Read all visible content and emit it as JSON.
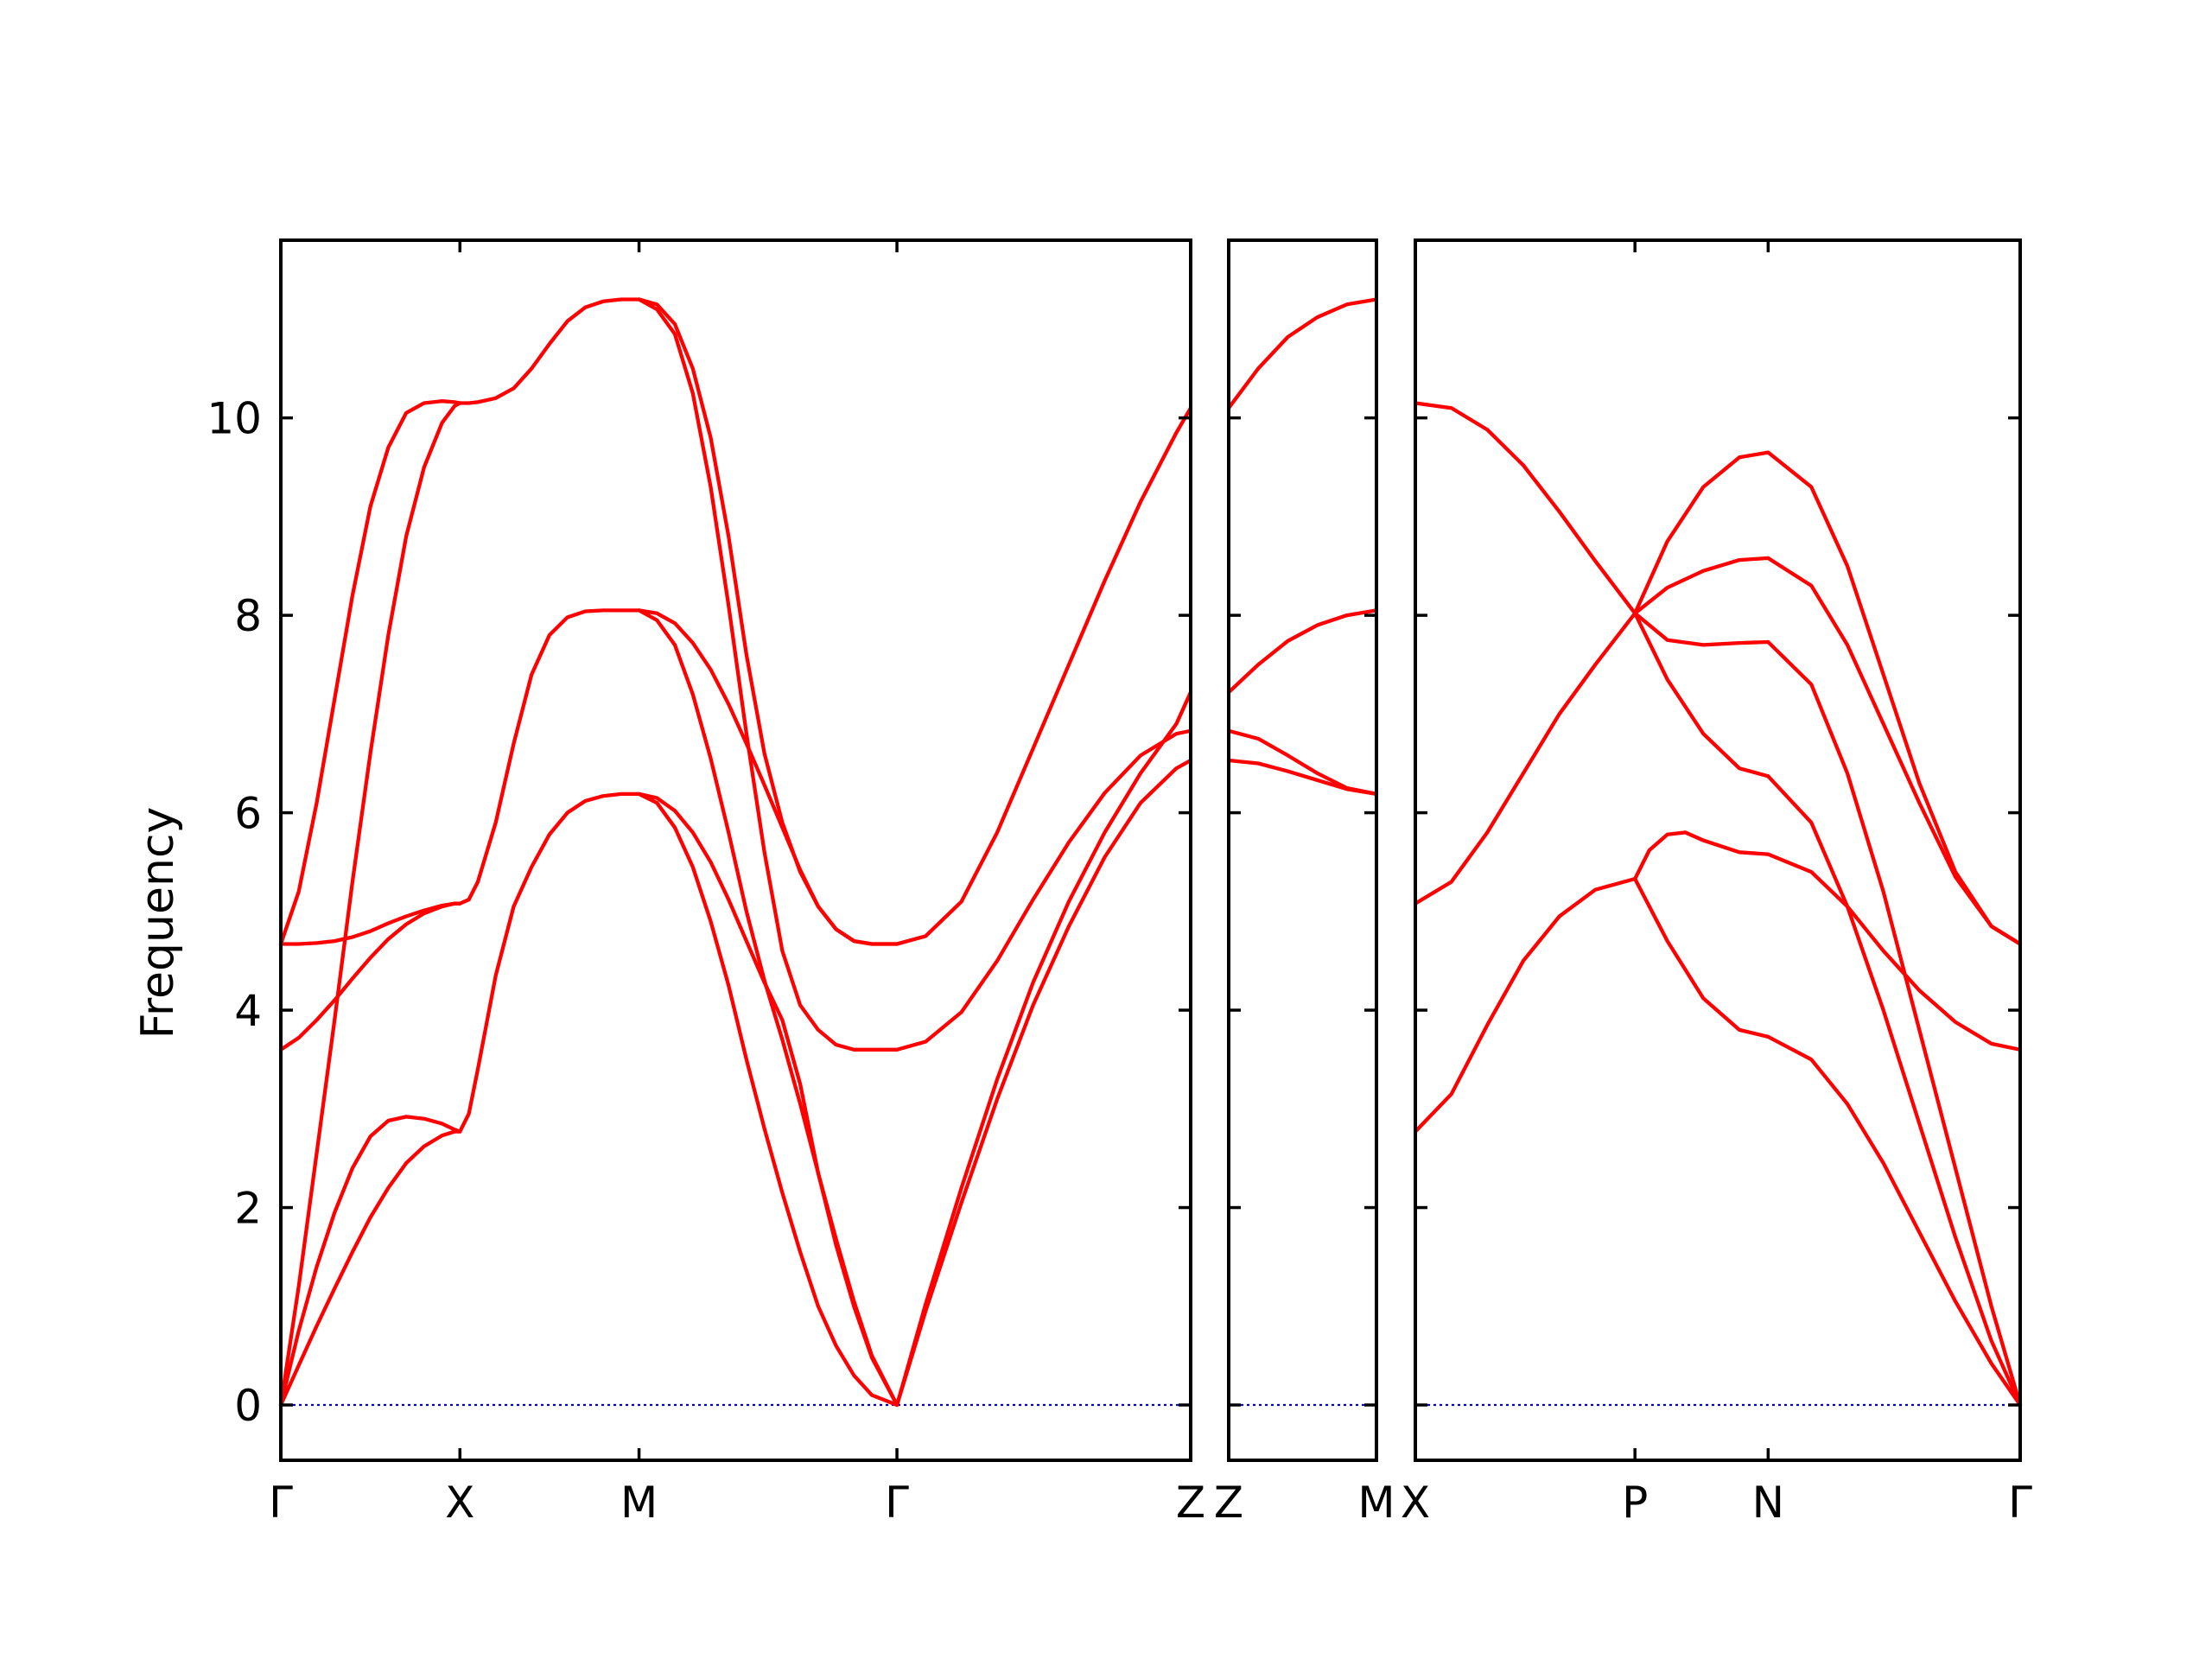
{
  "chart_data": {
    "type": "line",
    "ylabel": "Frequency",
    "ylim": [
      -0.56,
      11.8
    ],
    "yticks": [
      0,
      2,
      4,
      6,
      8,
      10
    ],
    "grid": false,
    "line_color": "#ff0000",
    "zero_line_color": "#0000cc",
    "panels": [
      {
        "xlim": [
          0,
          5.08
        ],
        "kpoints": [
          {
            "label": "Γ",
            "x": 0
          },
          {
            "label": "X",
            "x": 1
          },
          {
            "label": "M",
            "x": 2
          },
          {
            "label": "Γ",
            "x": 3.44
          },
          {
            "label": "Z",
            "x": 5.08
          }
        ],
        "series": [
          {
            "x": [
              0,
              0.1,
              0.2,
              0.3,
              0.4,
              0.5,
              0.6,
              0.7,
              0.8,
              0.9,
              0.97,
              1
            ],
            "y": [
              4.67,
              4.67,
              4.68,
              4.7,
              4.74,
              4.8,
              4.88,
              4.95,
              5.01,
              5.06,
              5.08,
              5.08
            ]
          },
          {
            "x": [
              0,
              0.1,
              0.2,
              0.3,
              0.4,
              0.5,
              0.6,
              0.7,
              0.8,
              0.9,
              0.97,
              1
            ],
            "y": [
              3.6,
              3.72,
              3.9,
              4.1,
              4.32,
              4.53,
              4.72,
              4.87,
              4.98,
              5.05,
              5.08,
              5.08
            ]
          },
          {
            "x": [
              0,
              0.1,
              0.2,
              0.3,
              0.4,
              0.5,
              0.6,
              0.7,
              0.8,
              0.9,
              0.97,
              1
            ],
            "y": [
              4.67,
              5.2,
              6.1,
              7.15,
              8.2,
              9.1,
              9.7,
              10.05,
              10.15,
              10.17,
              10.16,
              10.15
            ]
          },
          {
            "x": [
              0,
              0.1,
              0.2,
              0.3,
              0.4,
              0.5,
              0.6,
              0.7,
              0.8,
              0.9,
              0.97,
              1
            ],
            "y": [
              0,
              1.2,
              2.55,
              3.9,
              5.3,
              6.6,
              7.8,
              8.8,
              9.5,
              9.95,
              10.12,
              10.15
            ]
          },
          {
            "x": [
              0,
              0.1,
              0.2,
              0.3,
              0.4,
              0.5,
              0.6,
              0.7,
              0.8,
              0.9,
              0.97,
              1
            ],
            "y": [
              0,
              0.75,
              1.4,
              1.95,
              2.4,
              2.72,
              2.88,
              2.92,
              2.9,
              2.85,
              2.79,
              2.77
            ]
          },
          {
            "x": [
              0,
              0.1,
              0.2,
              0.3,
              0.4,
              0.5,
              0.6,
              0.7,
              0.8,
              0.9,
              0.97,
              1
            ],
            "y": [
              0,
              0.4,
              0.8,
              1.18,
              1.55,
              1.9,
              2.2,
              2.45,
              2.62,
              2.73,
              2.77,
              2.77
            ]
          },
          {
            "x": [
              1,
              1.05,
              1.1,
              1.2,
              1.3,
              1.4,
              1.5,
              1.6,
              1.7,
              1.8,
              1.9,
              2
            ],
            "y": [
              10.15,
              10.15,
              10.16,
              10.2,
              10.3,
              10.5,
              10.75,
              10.98,
              11.12,
              11.18,
              11.2,
              11.2
            ]
          },
          {
            "x": [
              1,
              1.05,
              1.1,
              1.2,
              1.3,
              1.4,
              1.5,
              1.6,
              1.7,
              1.8,
              1.9,
              2
            ],
            "y": [
              5.08,
              5.12,
              5.3,
              5.9,
              6.7,
              7.4,
              7.8,
              7.98,
              8.04,
              8.05,
              8.05,
              8.05
            ]
          },
          {
            "x": [
              1,
              1.05,
              1.1,
              1.2,
              1.3,
              1.4,
              1.5,
              1.6,
              1.7,
              1.8,
              1.9,
              2
            ],
            "y": [
              2.77,
              2.95,
              3.4,
              4.35,
              5.05,
              5.45,
              5.78,
              6,
              6.12,
              6.17,
              6.19,
              6.19
            ]
          },
          {
            "x": [
              2,
              2.1,
              2.2,
              2.3,
              2.4,
              2.5,
              2.6,
              2.7,
              2.8,
              2.9,
              3,
              3.1,
              3.2,
              3.3,
              3.44
            ],
            "y": [
              11.2,
              11.15,
              10.95,
              10.5,
              9.8,
              8.8,
              7.6,
              6.6,
              5.9,
              5.4,
              5.05,
              4.82,
              4.7,
              4.67,
              4.67
            ]
          },
          {
            "x": [
              2,
              2.1,
              2.2,
              2.3,
              2.4,
              2.5,
              2.6,
              2.7,
              2.8,
              2.9,
              3,
              3.1,
              3.2,
              3.3,
              3.44
            ],
            "y": [
              11.2,
              11.1,
              10.85,
              10.25,
              9.3,
              8.1,
              6.8,
              5.6,
              4.6,
              4.05,
              3.8,
              3.65,
              3.6,
              3.6,
              3.6
            ]
          },
          {
            "x": [
              2,
              2.1,
              2.2,
              2.3,
              2.4,
              2.5,
              2.6,
              2.7,
              2.8,
              2.9,
              3,
              3.1,
              3.2,
              3.3,
              3.44
            ],
            "y": [
              8.05,
              8.02,
              7.92,
              7.72,
              7.45,
              7.1,
              6.7,
              6.28,
              5.85,
              5.42,
              5.05,
              4.82,
              4.7,
              4.67,
              4.67
            ]
          },
          {
            "x": [
              2,
              2.1,
              2.2,
              2.3,
              2.4,
              2.5,
              2.6,
              2.7,
              2.8,
              2.9,
              3,
              3.1,
              3.2,
              3.3,
              3.44
            ],
            "y": [
              8.05,
              7.95,
              7.7,
              7.2,
              6.55,
              5.8,
              5,
              4.3,
              3.7,
              3.05,
              2.35,
              1.68,
              1.05,
              0.5,
              0
            ]
          },
          {
            "x": [
              2,
              2.1,
              2.2,
              2.3,
              2.4,
              2.5,
              2.6,
              2.7,
              2.8,
              2.9,
              3,
              3.1,
              3.2,
              3.3,
              3.44
            ],
            "y": [
              6.19,
              6.15,
              6.02,
              5.8,
              5.5,
              5.12,
              4.7,
              4.28,
              3.9,
              3.25,
              2.35,
              1.62,
              1,
              0.48,
              0
            ]
          },
          {
            "x": [
              2,
              2.1,
              2.2,
              2.3,
              2.4,
              2.5,
              2.6,
              2.7,
              2.8,
              2.9,
              3,
              3.1,
              3.2,
              3.3,
              3.44
            ],
            "y": [
              6.19,
              6.1,
              5.85,
              5.45,
              4.9,
              4.25,
              3.5,
              2.8,
              2.15,
              1.55,
              1,
              0.6,
              0.3,
              0.1,
              0
            ]
          },
          {
            "x": [
              3.44,
              3.6,
              3.8,
              4,
              4.2,
              4.4,
              4.6,
              4.8,
              5,
              5.08
            ],
            "y": [
              4.67,
              4.75,
              5.1,
              5.8,
              6.65,
              7.5,
              8.35,
              9.15,
              9.85,
              10.1
            ]
          },
          {
            "x": [
              3.44,
              3.6,
              3.8,
              4,
              4.2,
              4.4,
              4.6,
              4.8,
              5,
              5.08
            ],
            "y": [
              3.6,
              3.68,
              3.98,
              4.5,
              5.12,
              5.7,
              6.2,
              6.58,
              6.8,
              6.83
            ]
          },
          {
            "x": [
              3.44,
              3.6,
              3.8,
              4,
              4.2,
              4.4,
              4.6,
              4.8,
              5,
              5.08
            ],
            "y": [
              0,
              1.02,
              2.2,
              3.3,
              4.28,
              5.1,
              5.8,
              6.4,
              6.9,
              7.22
            ]
          },
          {
            "x": [
              3.44,
              3.6,
              3.8,
              4,
              4.2,
              4.4,
              4.6,
              4.8,
              5,
              5.08
            ],
            "y": [
              0,
              0.95,
              2.05,
              3.1,
              4.05,
              4.85,
              5.55,
              6.1,
              6.45,
              6.53
            ]
          }
        ]
      },
      {
        "xlim": [
          0,
          1
        ],
        "kpoints": [
          {
            "label": "Z",
            "x": 0
          },
          {
            "label": "M",
            "x": 1
          }
        ],
        "series": [
          {
            "x": [
              0,
              0.2,
              0.4,
              0.6,
              0.8,
              1
            ],
            "y": [
              10.1,
              10.5,
              10.82,
              11.02,
              11.15,
              11.2
            ]
          },
          {
            "x": [
              0,
              0.2,
              0.4,
              0.6,
              0.8,
              1
            ],
            "y": [
              7.22,
              7.5,
              7.74,
              7.9,
              8,
              8.05
            ]
          },
          {
            "x": [
              0,
              0.2,
              0.4,
              0.6,
              0.8,
              1
            ],
            "y": [
              6.83,
              6.75,
              6.58,
              6.4,
              6.25,
              6.19
            ]
          },
          {
            "x": [
              0,
              0.2,
              0.4,
              0.6,
              0.8,
              1
            ],
            "y": [
              6.53,
              6.5,
              6.42,
              6.33,
              6.24,
              6.19
            ]
          }
        ]
      },
      {
        "xlim": [
          0,
          3.36
        ],
        "kpoints": [
          {
            "label": "X",
            "x": 0
          },
          {
            "label": "P",
            "x": 1.22
          },
          {
            "label": "N",
            "x": 1.96
          },
          {
            "label": "Γ",
            "x": 3.36
          }
        ],
        "series": [
          {
            "x": [
              0,
              0.2,
              0.4,
              0.6,
              0.8,
              1,
              1.22
            ],
            "y": [
              10.15,
              10.1,
              9.88,
              9.52,
              9.05,
              8.55,
              8.02
            ]
          },
          {
            "x": [
              0,
              0.2,
              0.4,
              0.6,
              0.8,
              1,
              1.22
            ],
            "y": [
              5.08,
              5.3,
              5.8,
              6.4,
              7,
              7.5,
              8.02
            ]
          },
          {
            "x": [
              0,
              0.2,
              0.4,
              0.6,
              0.8,
              1,
              1.22
            ],
            "y": [
              2.77,
              3.15,
              3.85,
              4.5,
              4.95,
              5.22,
              5.33
            ]
          },
          {
            "x": [
              1.22,
              1.4,
              1.6,
              1.8,
              1.96
            ],
            "y": [
              8.02,
              8.75,
              9.3,
              9.6,
              9.65
            ]
          },
          {
            "x": [
              1.22,
              1.4,
              1.6,
              1.8,
              1.96
            ],
            "y": [
              8.02,
              8.28,
              8.45,
              8.56,
              8.58
            ]
          },
          {
            "x": [
              1.22,
              1.4,
              1.6,
              1.8,
              1.96
            ],
            "y": [
              8.02,
              7.75,
              7.7,
              7.72,
              7.73
            ]
          },
          {
            "x": [
              1.22,
              1.4,
              1.6,
              1.8,
              1.96
            ],
            "y": [
              8.02,
              7.35,
              6.8,
              6.45,
              6.37
            ]
          },
          {
            "x": [
              1.22,
              1.3,
              1.4,
              1.5,
              1.6,
              1.8,
              1.96
            ],
            "y": [
              5.33,
              5.62,
              5.78,
              5.8,
              5.72,
              5.6,
              5.58
            ]
          },
          {
            "x": [
              1.22,
              1.4,
              1.6,
              1.8,
              1.96
            ],
            "y": [
              5.33,
              4.7,
              4.12,
              3.8,
              3.73
            ]
          },
          {
            "x": [
              1.96,
              2.2,
              2.4,
              2.6,
              2.8,
              3,
              3.2,
              3.36
            ],
            "y": [
              9.65,
              9.3,
              8.5,
              7.4,
              6.3,
              5.4,
              4.85,
              4.67
            ]
          },
          {
            "x": [
              1.96,
              2.2,
              2.4,
              2.6,
              2.8,
              3,
              3.2,
              3.36
            ],
            "y": [
              8.58,
              8.3,
              7.7,
              6.9,
              6.1,
              5.35,
              4.85,
              4.67
            ]
          },
          {
            "x": [
              1.96,
              2.2,
              2.4,
              2.6,
              2.8,
              3,
              3.2,
              3.36
            ],
            "y": [
              7.73,
              7.3,
              6.4,
              5.2,
              3.8,
              2.4,
              1.0,
              0
            ]
          },
          {
            "x": [
              1.96,
              2.2,
              2.4,
              2.6,
              2.8,
              3,
              3.2,
              3.36
            ],
            "y": [
              6.37,
              5.9,
              5.05,
              4,
              2.85,
              1.7,
              0.65,
              0
            ]
          },
          {
            "x": [
              1.96,
              2.2,
              2.4,
              2.6,
              2.8,
              3,
              3.2,
              3.36
            ],
            "y": [
              5.58,
              5.4,
              5.05,
              4.6,
              4.2,
              3.88,
              3.66,
              3.6
            ]
          },
          {
            "x": [
              1.96,
              2.2,
              2.4,
              2.6,
              2.8,
              3,
              3.2,
              3.36
            ],
            "y": [
              3.73,
              3.5,
              3.05,
              2.45,
              1.75,
              1.05,
              0.42,
              0
            ]
          }
        ]
      }
    ]
  }
}
